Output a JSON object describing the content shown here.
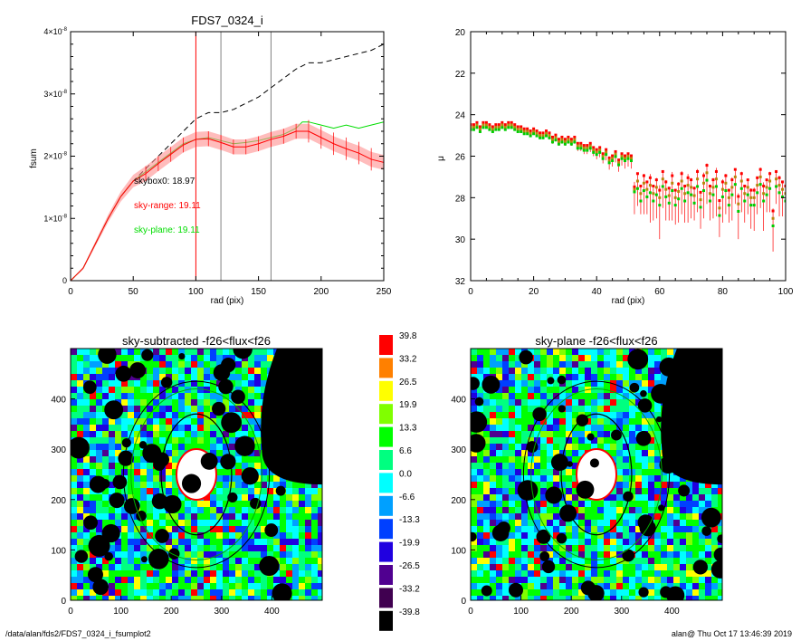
{
  "footer": {
    "path": "/data/alan/fds2/FDS7_0324_i_fsumplot2",
    "user_time": "alan@  Thu Oct 17 13:46:39 2019"
  },
  "chart_data": [
    {
      "type": "line",
      "title": "FDS7_0324_i",
      "xlabel": "rad (pix)",
      "ylabel": "fsum",
      "xlim": [
        0,
        250
      ],
      "ylim": [
        0,
        4e-08
      ],
      "xticks": [
        "0",
        "50",
        "100",
        "150",
        "200",
        "250"
      ],
      "yticks": [
        {
          "mantissa": "0",
          "exp": ""
        },
        {
          "mantissa": "1×10",
          "exp": "-8"
        },
        {
          "mantissa": "2×10",
          "exp": "-8"
        },
        {
          "mantissa": "3×10",
          "exp": "-8"
        },
        {
          "mantissa": "4×10",
          "exp": "-8"
        }
      ],
      "vlines": [
        {
          "x": 100,
          "color": "#ff0000"
        },
        {
          "x": 120,
          "color": "#808080"
        },
        {
          "x": 160,
          "color": "#808080"
        }
      ],
      "annotations": [
        {
          "text": "skybox0: 18.97",
          "color": "#000000"
        },
        {
          "text": "sky-range: 19.11",
          "color": "#ff0000"
        },
        {
          "text": "sky-plane: 19.11",
          "color": "#00dd00"
        }
      ],
      "series": [
        {
          "style": "dashed",
          "color": "#000000",
          "x": [
            0,
            10,
            20,
            30,
            40,
            50,
            60,
            70,
            80,
            90,
            100,
            110,
            120,
            130,
            140,
            150,
            160,
            170,
            180,
            190,
            200,
            210,
            220,
            230,
            240,
            250
          ],
          "y": [
            0,
            2e-09,
            6e-09,
            1e-08,
            1.35e-08,
            1.6e-08,
            1.8e-08,
            2e-08,
            2.2e-08,
            2.4e-08,
            2.6e-08,
            2.7e-08,
            2.7e-08,
            2.75e-08,
            2.85e-08,
            2.95e-08,
            3.1e-08,
            3.25e-08,
            3.4e-08,
            3.5e-08,
            3.5e-08,
            3.55e-08,
            3.6e-08,
            3.65e-08,
            3.7e-08,
            3.8e-08
          ]
        },
        {
          "style": "solid",
          "color": "#00dd00",
          "x": [
            0,
            10,
            20,
            30,
            40,
            50,
            60,
            70,
            80,
            90,
            100,
            110,
            120,
            130,
            140,
            150,
            160,
            170,
            180,
            185,
            190,
            200,
            210,
            220,
            230,
            240,
            250
          ],
          "y": [
            0,
            2e-09,
            6e-09,
            1e-08,
            1.35e-08,
            1.6e-08,
            1.75e-08,
            1.9e-08,
            2.05e-08,
            2.2e-08,
            2.27e-08,
            2.3e-08,
            2.25e-08,
            2.2e-08,
            2.22e-08,
            2.25e-08,
            2.3e-08,
            2.35e-08,
            2.45e-08,
            2.55e-08,
            2.55e-08,
            2.5e-08,
            2.45e-08,
            2.5e-08,
            2.45e-08,
            2.5e-08,
            2.55e-08
          ]
        },
        {
          "style": "solid",
          "color": "#ff0000",
          "band": 1.2e-09,
          "x": [
            0,
            10,
            20,
            30,
            40,
            50,
            60,
            70,
            80,
            90,
            100,
            110,
            120,
            130,
            140,
            150,
            160,
            170,
            180,
            190,
            200,
            210,
            220,
            230,
            240,
            250
          ],
          "y": [
            0,
            2e-09,
            6e-09,
            1e-08,
            1.35e-08,
            1.6e-08,
            1.72e-08,
            1.88e-08,
            2.03e-08,
            2.18e-08,
            2.27e-08,
            2.28e-08,
            2.22e-08,
            2.15e-08,
            2.15e-08,
            2.2e-08,
            2.27e-08,
            2.32e-08,
            2.4e-08,
            2.4e-08,
            2.3e-08,
            2.2e-08,
            2.12e-08,
            2.05e-08,
            1.95e-08,
            1.9e-08
          ]
        }
      ]
    },
    {
      "type": "scatter",
      "title": "",
      "xlabel": "rad (pix)",
      "ylabel": "μ",
      "xlim": [
        0,
        100
      ],
      "ylim": [
        32,
        20
      ],
      "xticks": [
        "0",
        "20",
        "40",
        "60",
        "80",
        "100"
      ],
      "yticks": [
        "20",
        "22",
        "24",
        "26",
        "28",
        "30",
        "32"
      ],
      "x": [
        0,
        1,
        2,
        3,
        4,
        5,
        6,
        7,
        8,
        9,
        10,
        11,
        12,
        13,
        14,
        15,
        16,
        17,
        18,
        19,
        20,
        21,
        22,
        23,
        24,
        25,
        26,
        27,
        28,
        29,
        30,
        31,
        32,
        33,
        34,
        35,
        36,
        37,
        38,
        39,
        40,
        41,
        42,
        43,
        44,
        45,
        46,
        47,
        48,
        49,
        50,
        51,
        52,
        53,
        54,
        55,
        56,
        57,
        58,
        59,
        60,
        61,
        62,
        63,
        64,
        65,
        66,
        67,
        68,
        69,
        70,
        71,
        72,
        73,
        74,
        75,
        76,
        77,
        78,
        79,
        80,
        81,
        82,
        83,
        84,
        85,
        86,
        87,
        88,
        89,
        90,
        91,
        92,
        93,
        94,
        95,
        96,
        97,
        98,
        99,
        100
      ],
      "y": [
        24.6,
        24.6,
        24.5,
        24.7,
        24.5,
        24.5,
        24.6,
        24.7,
        24.6,
        24.6,
        24.5,
        24.6,
        24.5,
        24.5,
        24.6,
        24.7,
        24.7,
        24.8,
        24.8,
        24.9,
        24.8,
        24.9,
        25.0,
        25.0,
        24.9,
        25.0,
        25.2,
        25.1,
        25.3,
        25.2,
        25.3,
        25.2,
        25.3,
        25.2,
        25.5,
        25.5,
        25.6,
        25.6,
        25.5,
        25.7,
        25.8,
        25.7,
        26.0,
        25.8,
        26.2,
        26.1,
        25.9,
        26.3,
        26.0,
        26.1,
        26.0,
        26.1,
        27.6,
        27.2,
        27.8,
        27.3,
        27.6,
        27.4,
        27.8,
        27.5,
        28.0,
        27.1,
        27.6,
        27.9,
        27.3,
        28.0,
        27.7,
        27.2,
        27.8,
        27.4,
        27.5,
        27.9,
        27.1,
        28.1,
        27.3,
        26.8,
        27.8,
        27.5,
        27.1,
        28.5,
        27.6,
        27.3,
        28.0,
        27.5,
        27.0,
        28.3,
        27.2,
        27.8,
        27.5,
        28.0,
        28.0,
        27.4,
        27.0,
        27.8,
        27.5,
        27.2,
        29.0,
        27.1,
        27.4,
        27.6,
        27.8
      ],
      "err": [
        0.1,
        0.1,
        0.1,
        0.1,
        0.1,
        0.1,
        0.1,
        0.1,
        0.1,
        0.1,
        0.1,
        0.1,
        0.1,
        0.1,
        0.1,
        0.1,
        0.1,
        0.1,
        0.15,
        0.15,
        0.15,
        0.15,
        0.15,
        0.15,
        0.15,
        0.2,
        0.2,
        0.2,
        0.2,
        0.2,
        0.2,
        0.2,
        0.2,
        0.2,
        0.25,
        0.25,
        0.3,
        0.3,
        0.3,
        0.3,
        0.35,
        0.35,
        0.35,
        0.4,
        0.45,
        0.4,
        0.4,
        0.45,
        0.45,
        0.5,
        0.5,
        0.5,
        1.2,
        1.2,
        1.0,
        1.5,
        1.2,
        1.8,
        1.3,
        1.5,
        2.0,
        1.4,
        1.5,
        1.2,
        1.8,
        1.3,
        1.5,
        1.6,
        1.4,
        1.8,
        1.5,
        1.2,
        1.6,
        1.4,
        1.7,
        1.5,
        1.3,
        1.5,
        1.8,
        1.4,
        1.6,
        1.5,
        1.2,
        1.6,
        1.3,
        1.7,
        1.5,
        1.4,
        1.3,
        1.5,
        1.6,
        1.4,
        1.5,
        1.8,
        1.2,
        1.5,
        1.6,
        1.2,
        1.5,
        1.3,
        1.4
      ],
      "markers": [
        "#ff0000",
        "#b8860b",
        "#00cc00"
      ]
    },
    {
      "type": "heatmap",
      "title": "sky-subtracted -f26<flux<f26",
      "xlim": [
        0,
        500
      ],
      "ylim": [
        0,
        500
      ],
      "xticks": [
        "0",
        "100",
        "200",
        "300",
        "400"
      ],
      "yticks": [
        "0",
        "100",
        "200",
        "300",
        "400"
      ]
    },
    {
      "type": "heatmap",
      "title": "sky-plane -f26<flux<f26",
      "xlim": [
        0,
        500
      ],
      "ylim": [
        0,
        500
      ],
      "xticks": [
        "0",
        "100",
        "200",
        "300",
        "400"
      ],
      "yticks": [
        "0",
        "100",
        "200",
        "300",
        "400"
      ]
    }
  ],
  "colorbar": {
    "labels": [
      "39.8",
      "33.2",
      "26.5",
      "19.9",
      "13.3",
      "6.6",
      "0.0",
      "-6.6",
      "-13.3",
      "-19.9",
      "-26.5",
      "-33.2",
      "-39.8"
    ],
    "colors": [
      "#ff0000",
      "#ff8000",
      "#ffff00",
      "#80ff00",
      "#00ff00",
      "#00ff80",
      "#00ffff",
      "#00a0ff",
      "#0040ff",
      "#2000e0",
      "#500090",
      "#400050",
      "#000000"
    ]
  }
}
